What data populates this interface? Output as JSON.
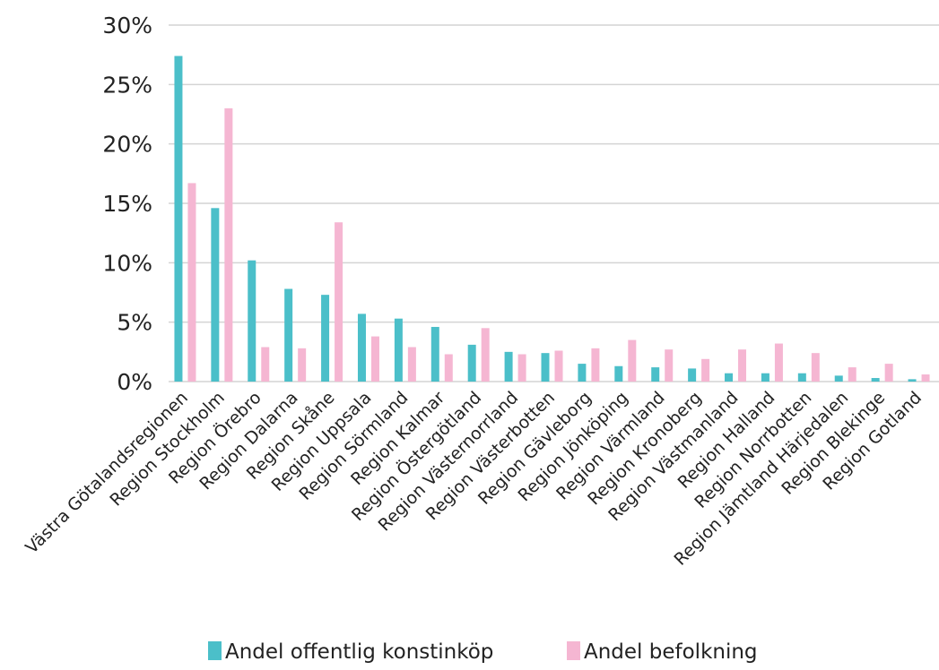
{
  "chart_data": {
    "type": "bar",
    "categories": [
      "Västra Götalandsregionen",
      "Region Stockholm",
      "Region Örebro",
      "Region Dalarna",
      "Region Skåne",
      "Region Uppsala",
      "Region Sörmland",
      "Region Kalmar",
      "Region Östergötland",
      "Region Västernorrland",
      "Region Västerbotten",
      "Region Gävleborg",
      "Region Jönköping",
      "Region Värmland",
      "Region Kronoberg",
      "Region Västmanland",
      "Region Halland",
      "Region Norrbotten",
      "Region Jämtland Härjedalen",
      "Region Blekinge",
      "Region Gotland"
    ],
    "series": [
      {
        "name": "Andel offentlig konstinköp",
        "color": "#4bbfc9",
        "values": [
          27.4,
          14.6,
          10.2,
          7.8,
          7.3,
          5.7,
          5.3,
          4.6,
          3.1,
          2.5,
          2.4,
          1.5,
          1.3,
          1.2,
          1.1,
          0.7,
          0.7,
          0.7,
          0.5,
          0.3,
          0.2
        ]
      },
      {
        "name": "Andel befolkning",
        "color": "#f5b6d2",
        "values": [
          16.7,
          23.0,
          2.9,
          2.8,
          13.4,
          3.8,
          2.9,
          2.3,
          4.5,
          2.3,
          2.6,
          2.8,
          3.5,
          2.7,
          1.9,
          2.7,
          3.2,
          2.4,
          1.2,
          1.5,
          0.6
        ]
      }
    ],
    "yticks": [
      "0%",
      "5%",
      "10%",
      "15%",
      "20%",
      "25%",
      "30%"
    ],
    "ylim": [
      0,
      30
    ],
    "grid": true,
    "legend_position": "bottom-center"
  }
}
